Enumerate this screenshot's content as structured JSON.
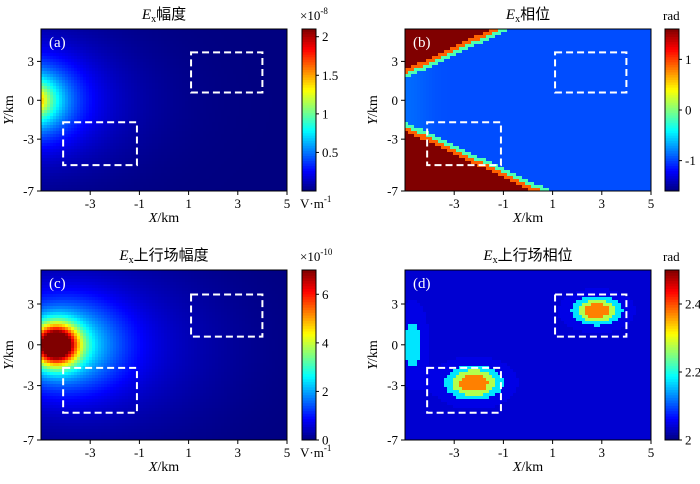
{
  "chart_data": [
    {
      "type": "heatmap",
      "panel_label": "(a)",
      "title_sym": "E",
      "title_sub": "x",
      "title_text": "幅度",
      "xlabel_sym": "X",
      "xlabel_unit": "/km",
      "ylabel_sym": "Y",
      "ylabel_unit": "/km",
      "xlim": [
        -5,
        5
      ],
      "ylim": [
        -7,
        5.5
      ],
      "xticks": [
        "-3",
        "-1",
        "1",
        "3",
        "5"
      ],
      "yticks": [
        "3",
        "0",
        "-3",
        "-7"
      ],
      "ytick_values": [
        3,
        0,
        -3,
        -7
      ],
      "xtick_values": [
        -3,
        -1,
        1,
        3,
        5
      ],
      "colorbar": {
        "range": [
          0,
          2.1
        ],
        "ticks": [
          "0.5",
          "1",
          "1.5",
          "2"
        ],
        "tick_values": [
          0.5,
          1,
          1.5,
          2
        ],
        "top_label": "×10",
        "top_exp": "-8",
        "bottom_label": "V·m",
        "bottom_exp": "-1"
      },
      "field": "ex_amp",
      "boxes": [
        {
          "x": [
            1.1,
            4.0
          ],
          "y": [
            0.6,
            3.7
          ]
        },
        {
          "x": [
            -4.1,
            -1.1
          ],
          "y": [
            -5.0,
            -1.7
          ]
        }
      ]
    },
    {
      "type": "heatmap",
      "panel_label": "(b)",
      "title_sym": "E",
      "title_sub": "x",
      "title_text": "相位",
      "xlabel_sym": "X",
      "xlabel_unit": "/km",
      "ylabel_sym": "Y",
      "ylabel_unit": "/km",
      "xlim": [
        -5,
        5
      ],
      "ylim": [
        -7,
        5.5
      ],
      "xticks": [
        "-3",
        "-1",
        "1",
        "3",
        "5"
      ],
      "yticks": [
        "3",
        "0",
        "-3",
        "-7"
      ],
      "ytick_values": [
        3,
        0,
        -3,
        -7
      ],
      "xtick_values": [
        -3,
        -1,
        1,
        3,
        5
      ],
      "colorbar": {
        "range": [
          -1.6,
          1.6
        ],
        "ticks": [
          "1",
          "0",
          "-1"
        ],
        "tick_values": [
          1,
          0,
          -1
        ],
        "top_label": "rad",
        "top_exp": "",
        "bottom_label": "",
        "bottom_exp": ""
      },
      "field": "ex_phase",
      "boxes": [
        {
          "x": [
            1.1,
            4.0
          ],
          "y": [
            0.6,
            3.7
          ]
        },
        {
          "x": [
            -4.1,
            -1.1
          ],
          "y": [
            -5.0,
            -1.7
          ]
        }
      ]
    },
    {
      "type": "heatmap",
      "panel_label": "(c)",
      "title_sym": "E",
      "title_sub": "x",
      "title_text": "上行场幅度",
      "xlabel_sym": "X",
      "xlabel_unit": "/km",
      "ylabel_sym": "Y",
      "ylabel_unit": "/km",
      "xlim": [
        -5,
        5
      ],
      "ylim": [
        -7,
        5.5
      ],
      "xticks": [
        "-3",
        "-1",
        "1",
        "3",
        "5"
      ],
      "yticks": [
        "3",
        "0",
        "-3",
        "-7"
      ],
      "ytick_values": [
        3,
        0,
        -3,
        -7
      ],
      "xtick_values": [
        -3,
        -1,
        1,
        3,
        5
      ],
      "colorbar": {
        "range": [
          0,
          7
        ],
        "ticks": [
          "6",
          "4",
          "2",
          "0"
        ],
        "tick_values": [
          6,
          4,
          2,
          0
        ],
        "top_label": "×10",
        "top_exp": "-10",
        "bottom_label": "V·m",
        "bottom_exp": "-1"
      },
      "field": "up_amp",
      "boxes": [
        {
          "x": [
            1.1,
            4.0
          ],
          "y": [
            0.6,
            3.7
          ]
        },
        {
          "x": [
            -4.1,
            -1.1
          ],
          "y": [
            -5.0,
            -1.7
          ]
        }
      ]
    },
    {
      "type": "heatmap",
      "panel_label": "(d)",
      "title_sym": "E",
      "title_sub": "x",
      "title_text": "上行场相位",
      "xlabel_sym": "X",
      "xlabel_unit": "/km",
      "ylabel_sym": "Y",
      "ylabel_unit": "/km",
      "xlim": [
        -5,
        5
      ],
      "ylim": [
        -7,
        5.5
      ],
      "xticks": [
        "-3",
        "-1",
        "1",
        "3",
        "5"
      ],
      "yticks": [
        "3",
        "0",
        "-3",
        "-7"
      ],
      "ytick_values": [
        3,
        0,
        -3,
        -7
      ],
      "xtick_values": [
        -3,
        -1,
        1,
        3,
        5
      ],
      "colorbar": {
        "range": [
          2.0,
          2.5
        ],
        "ticks": [
          "2.4",
          "2.2",
          "2"
        ],
        "tick_values": [
          2.4,
          2.2,
          2.0
        ],
        "top_label": "rad",
        "top_exp": "",
        "bottom_label": "",
        "bottom_exp": ""
      },
      "field": "up_phase",
      "boxes": [
        {
          "x": [
            1.1,
            4.0
          ],
          "y": [
            0.6,
            3.7
          ]
        },
        {
          "x": [
            -4.1,
            -1.1
          ],
          "y": [
            -5.0,
            -1.7
          ]
        }
      ]
    }
  ]
}
